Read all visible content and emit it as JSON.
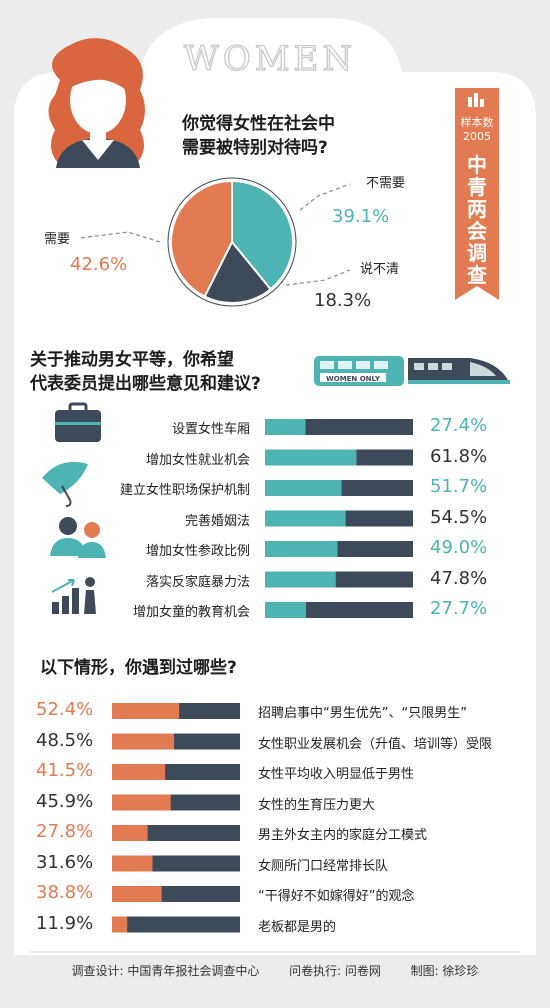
{
  "header": {
    "banner_word": "WOMEN"
  },
  "badge": {
    "sample_label": "样本数",
    "sample_count": "2005",
    "title_chars": [
      "中",
      "青",
      "两",
      "会",
      "调",
      "查"
    ]
  },
  "colors": {
    "teal": "#4db3b3",
    "orange": "#e27b52",
    "navy": "#3d4a5a",
    "bg_grey": "#eaeced"
  },
  "q1": {
    "title_line1": "你觉得女性在社会中",
    "title_line2": "需要被特别对待吗?"
  },
  "q2": {
    "title_line1": "关于推动男女平等，你希望",
    "title_line2": "代表委员提出哪些意见和建议?",
    "train_label": "WOMEN ONLY"
  },
  "q3": {
    "title": "以下情形，你遇到过哪些?"
  },
  "footer": {
    "design": "调查设计: 中国青年报社会调查中心",
    "execution": "问卷执行: 问卷网",
    "graphics": "制图: 徐珍珍"
  },
  "chart_data": [
    {
      "type": "pie",
      "categories": [
        "不需要",
        "说不清",
        "需要"
      ],
      "values": [
        39.1,
        18.3,
        42.6
      ],
      "value_labels": [
        "39.1%",
        "18.3%",
        "42.6%"
      ],
      "colors": [
        "#4db3b3",
        "#3d4a5a",
        "#e27b52"
      ]
    },
    {
      "type": "bar",
      "orientation": "horizontal",
      "categories": [
        "设置女性车厢",
        "增加女性就业机会",
        "建立女性职场保护机制",
        "完善婚姻法",
        "增加女性参政比例",
        "落实反家庭暴力法",
        "增加女童的教育机会"
      ],
      "values": [
        27.4,
        61.8,
        51.7,
        54.5,
        49.0,
        47.8,
        27.7
      ],
      "value_labels": [
        "27.4%",
        "61.8%",
        "51.7%",
        "54.5%",
        "49.0%",
        "47.8%",
        "27.7%"
      ],
      "value_colors": [
        "#4db3b3",
        "#333333",
        "#4db3b3",
        "#333333",
        "#4db3b3",
        "#333333",
        "#4db3b3"
      ],
      "xlim": [
        0,
        100
      ],
      "fill_color": "#4db3b3",
      "track_color": "#3d4a5a"
    },
    {
      "type": "bar",
      "orientation": "horizontal",
      "categories": [
        "招聘启事中“男生优先”、“只限男生”",
        "女性职业发展机会（升值、培训等）受限",
        "女性平均收入明显低于男性",
        "女性的生育压力更大",
        "男主外女主内的家庭分工模式",
        "女厕所门口经常排长队",
        "“干得好不如嫁得好”的观念",
        "老板都是男的"
      ],
      "values": [
        52.4,
        48.5,
        41.5,
        45.9,
        27.8,
        31.6,
        38.8,
        11.9
      ],
      "value_labels": [
        "52.4%",
        "48.5%",
        "41.5%",
        "45.9%",
        "27.8%",
        "31.6%",
        "38.8%",
        "11.9%"
      ],
      "value_colors": [
        "#e27b52",
        "#333333",
        "#e27b52",
        "#333333",
        "#e27b52",
        "#333333",
        "#e27b52",
        "#333333"
      ],
      "xlim": [
        0,
        100
      ],
      "fill_color": "#e27b52",
      "track_color": "#3d4a5a"
    }
  ]
}
